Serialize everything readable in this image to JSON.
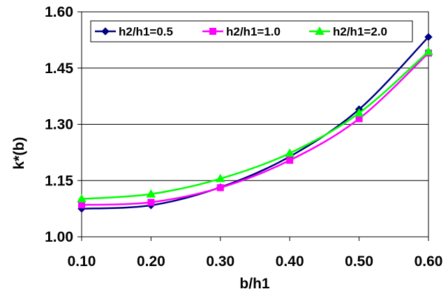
{
  "chart_data": {
    "type": "line",
    "xlabel": "b/h1",
    "ylabel": "k*(b)",
    "x": [
      0.1,
      0.2,
      0.3,
      0.4,
      0.5,
      0.6
    ],
    "x_tick_labels": [
      "0.10",
      "0.20",
      "0.30",
      "0.40",
      "0.50",
      "0.60"
    ],
    "y_tick_values": [
      1.0,
      1.15,
      1.3,
      1.45,
      1.6
    ],
    "y_tick_labels": [
      "1.00",
      "1.15",
      "1.30",
      "1.45",
      "1.60"
    ],
    "xlim": [
      0.1,
      0.6
    ],
    "ylim": [
      1.0,
      1.6
    ],
    "grid": "horizontal",
    "legend_position": "top",
    "series": [
      {
        "name": "h2/h1=0.5",
        "color": "#000080",
        "marker": "diamond",
        "values": [
          1.075,
          1.084,
          1.132,
          1.214,
          1.34,
          1.533
        ]
      },
      {
        "name": "h2/h1=1.0",
        "color": "#FF00FF",
        "marker": "square",
        "values": [
          1.085,
          1.092,
          1.131,
          1.204,
          1.315,
          1.49
        ]
      },
      {
        "name": "h2/h1=2.0",
        "color": "#00FF00",
        "marker": "triangle",
        "values": [
          1.101,
          1.114,
          1.155,
          1.223,
          1.33,
          1.494
        ]
      }
    ]
  }
}
